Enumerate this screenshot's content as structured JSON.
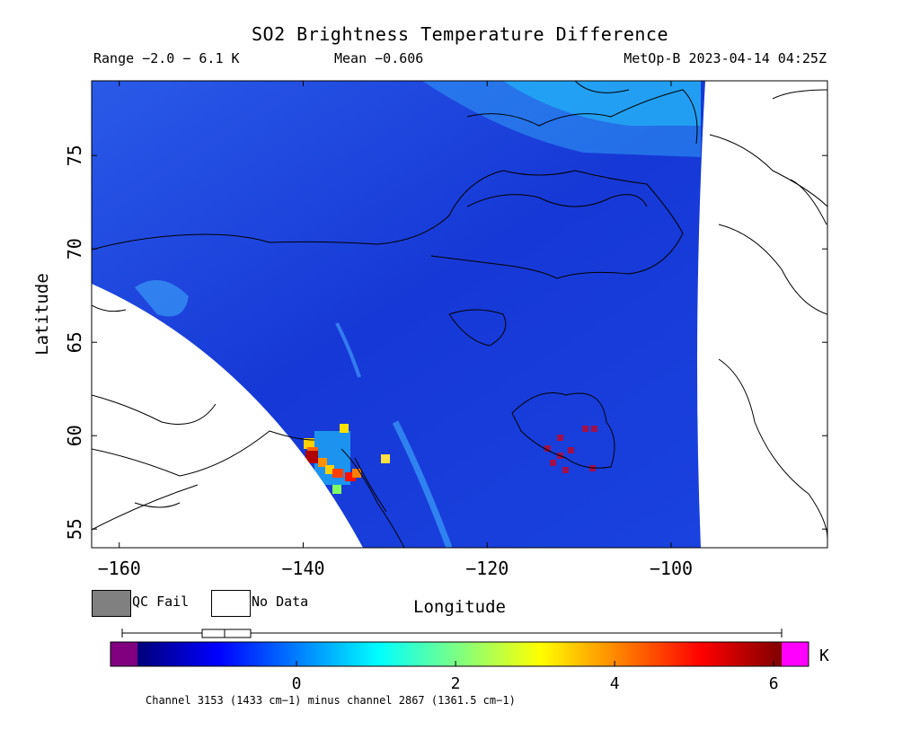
{
  "header": {
    "title": "SO2 Brightness Temperature Difference",
    "range": "Range −2.0 − 6.1 K",
    "mean": "Mean −0.606",
    "satellite_time": "MetOp-B 2023-04-14 04:25Z"
  },
  "axes": {
    "xlabel": "Longitude",
    "ylabel": "Latitude",
    "xticks": [
      "−160",
      "−140",
      "−120",
      "−100"
    ],
    "yticks": [
      "55",
      "60",
      "65",
      "70",
      "75"
    ],
    "xlim": [
      -163,
      -83
    ],
    "ylim": [
      54,
      79
    ]
  },
  "legend": {
    "qc_fail": "QC Fail",
    "no_data": "No Data",
    "qc_fail_color": "#808080",
    "no_data_color": "#ffffff"
  },
  "colorbar": {
    "unit": "K",
    "ticks": [
      "0",
      "2",
      "4",
      "6"
    ],
    "tick_values": [
      0,
      2,
      4,
      6
    ],
    "vmin": -2.0,
    "vmax": 6.1,
    "under_color": "#800080",
    "over_color": "#ff00ff",
    "colors": [
      "#00007a",
      "#0000ff",
      "#0080ff",
      "#00ffff",
      "#80ff80",
      "#ffff00",
      "#ff8000",
      "#ff0000",
      "#800000"
    ]
  },
  "footnote": "Channel 3153 (1433 cm−1) minus channel 2867 (1361.5 cm−1)",
  "map": {
    "background_color": "#1e4de0",
    "swath_edge_color": "#2aa0ff",
    "no_data_color": "#ffffff",
    "coastline_color": "#000000",
    "so2_plume_colors": [
      "#ffff00",
      "#ff8000",
      "#ff0000",
      "#a00000"
    ],
    "hotspot_color": "#a01040"
  }
}
